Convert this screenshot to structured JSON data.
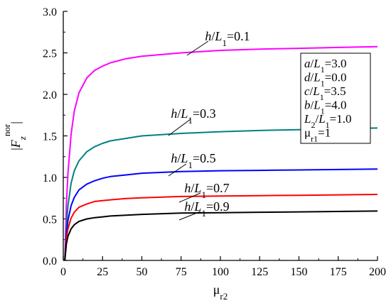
{
  "chart_data": {
    "type": "line",
    "xlabel": "μr2",
    "ylabel": "|Fznor|",
    "xlim": [
      0,
      200
    ],
    "ylim": [
      0.0,
      3.0
    ],
    "x_ticks": [
      0,
      25,
      50,
      75,
      100,
      125,
      150,
      175,
      200
    ],
    "x_tick_labels": [
      "0",
      "25",
      "50",
      "75",
      "100",
      "125",
      "150",
      "175",
      "200"
    ],
    "y_ticks": [
      0.0,
      0.5,
      1.0,
      1.5,
      2.0,
      2.5,
      3.0
    ],
    "y_tick_labels": [
      "0.0",
      "0.5",
      "1.0",
      "1.5",
      "2.0",
      "2.5",
      "3.0"
    ],
    "grid": false,
    "series": [
      {
        "name": "h/L1=0.1",
        "color": "#ff00ff",
        "x": [
          1,
          2,
          3,
          5,
          7,
          10,
          15,
          20,
          25,
          30,
          40,
          50,
          75,
          100,
          125,
          150,
          175,
          200
        ],
        "y": [
          0.0,
          0.68,
          1.05,
          1.52,
          1.8,
          2.02,
          2.2,
          2.29,
          2.34,
          2.38,
          2.43,
          2.46,
          2.5,
          2.53,
          2.545,
          2.555,
          2.565,
          2.575
        ]
      },
      {
        "name": "h/L1=0.3",
        "color": "#008080",
        "x": [
          1,
          2,
          3,
          5,
          7,
          10,
          15,
          20,
          25,
          30,
          40,
          50,
          75,
          100,
          125,
          150,
          175,
          200
        ],
        "y": [
          0.0,
          0.42,
          0.66,
          0.93,
          1.08,
          1.2,
          1.31,
          1.37,
          1.41,
          1.44,
          1.47,
          1.5,
          1.53,
          1.55,
          1.565,
          1.575,
          1.585,
          1.595
        ]
      },
      {
        "name": "h/L1=0.5",
        "color": "#0000ff",
        "x": [
          1,
          2,
          3,
          5,
          7,
          10,
          15,
          20,
          25,
          30,
          40,
          50,
          75,
          100,
          125,
          150,
          175,
          200
        ],
        "y": [
          0.0,
          0.32,
          0.48,
          0.66,
          0.76,
          0.85,
          0.92,
          0.96,
          0.99,
          1.01,
          1.03,
          1.05,
          1.07,
          1.08,
          1.085,
          1.09,
          1.095,
          1.1
        ]
      },
      {
        "name": "h/L1=0.7",
        "color": "#ff0000",
        "x": [
          1,
          2,
          3,
          5,
          7,
          10,
          15,
          20,
          25,
          30,
          40,
          50,
          75,
          100,
          125,
          150,
          175,
          200
        ],
        "y": [
          0.0,
          0.26,
          0.38,
          0.51,
          0.58,
          0.64,
          0.68,
          0.71,
          0.72,
          0.73,
          0.745,
          0.755,
          0.77,
          0.775,
          0.78,
          0.785,
          0.79,
          0.795
        ]
      },
      {
        "name": "h/L1=0.9",
        "color": "#000000",
        "x": [
          1,
          2,
          3,
          5,
          7,
          10,
          15,
          20,
          25,
          30,
          40,
          50,
          75,
          100,
          125,
          150,
          175,
          200
        ],
        "y": [
          0.0,
          0.2,
          0.29,
          0.38,
          0.43,
          0.47,
          0.5,
          0.515,
          0.525,
          0.535,
          0.545,
          0.555,
          0.57,
          0.575,
          0.58,
          0.585,
          0.59,
          0.595
        ]
      }
    ],
    "parameters": [
      {
        "var": "a",
        "sub": "",
        "rest": "/",
        "var2": "L",
        "sub2": "1",
        "value": "=3.0"
      },
      {
        "var": "d",
        "sub": "",
        "rest": "/",
        "var2": "L",
        "sub2": "1",
        "value": "=0.0"
      },
      {
        "var": "c",
        "sub": "",
        "rest": "/",
        "var2": "L",
        "sub2": "1",
        "value": "=3.5"
      },
      {
        "var": "b",
        "sub": "",
        "rest": "/",
        "var2": "L",
        "sub2": "1",
        "value": "=4.0"
      },
      {
        "var": "L",
        "sub": "2",
        "rest": "/",
        "var2": "L",
        "sub2": "1",
        "value": "=1.0"
      },
      {
        "var": "μ",
        "sub": "r1",
        "rest": "",
        "var2": "",
        "sub2": "",
        "value": "=1"
      }
    ]
  }
}
